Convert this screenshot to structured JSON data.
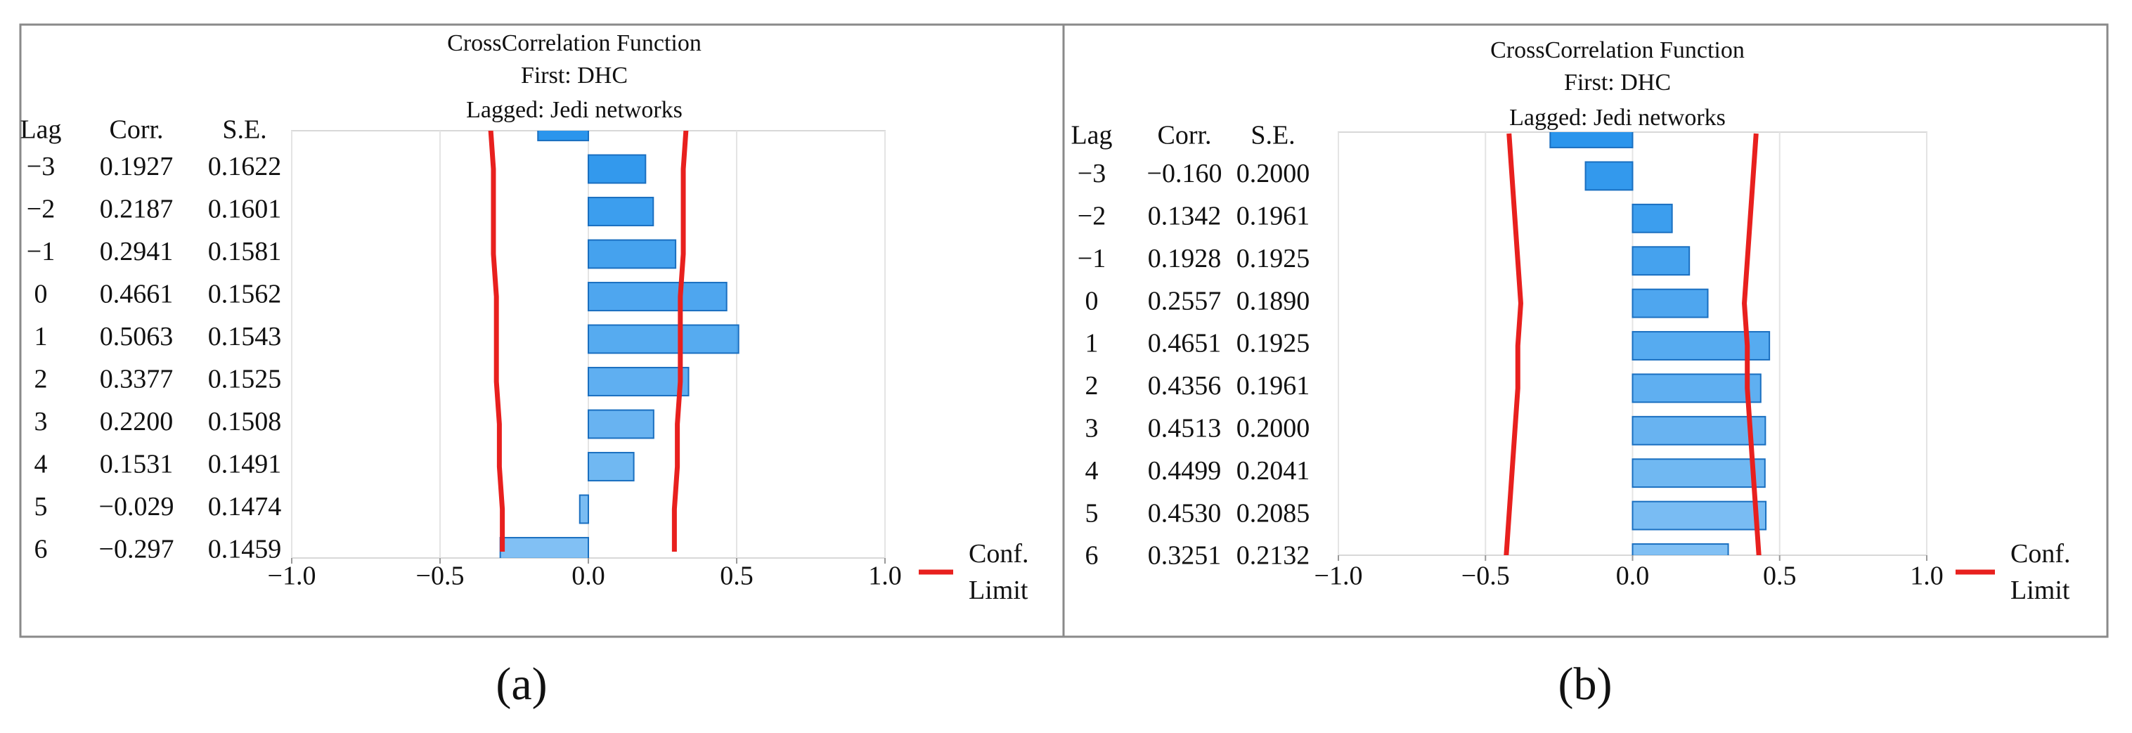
{
  "chart_data": [
    {
      "type": "bar",
      "orientation": "horizontal",
      "panel_label": "(a)",
      "title": [
        "CrossCorrelation Function",
        "First: DHC",
        "Lagged: Jedi networks"
      ],
      "table_header": [
        "Lag",
        "Corr.",
        "S.E."
      ],
      "categories": [
        null,
        "−3",
        "−2",
        "−1",
        "0",
        "1",
        "2",
        "3",
        "4",
        "5",
        "6"
      ],
      "values": [
        -0.17,
        0.1927,
        0.2187,
        0.2941,
        0.4661,
        0.5063,
        0.3377,
        0.22,
        0.1531,
        -0.029,
        -0.297
      ],
      "value_labels": [
        null,
        "0.1927",
        "0.2187",
        "0.2941",
        "0.4661",
        "0.5063",
        "0.3377",
        "0.2200",
        "0.1531",
        "−0.029",
        "−0.297"
      ],
      "se_labels": [
        null,
        "0.1622",
        "0.1601",
        "0.1581",
        "0.1562",
        "0.1543",
        "0.1525",
        "0.1508",
        "0.1491",
        "0.1474",
        "0.1459"
      ],
      "color": "#2b95ec",
      "conf_limit": {
        "name": "Conf. Limit",
        "color": "#e8201e",
        "upper": [
          0.33,
          0.32,
          0.32,
          0.32,
          0.31,
          0.31,
          0.31,
          0.3,
          0.3,
          0.29,
          0.29
        ],
        "lower": [
          -0.33,
          -0.32,
          -0.32,
          -0.32,
          -0.31,
          -0.31,
          -0.31,
          -0.3,
          -0.3,
          -0.29,
          -0.29
        ]
      },
      "xlim": [
        -1.0,
        1.0
      ],
      "xticks": [
        {
          "value": -1.0,
          "label": "−1.0"
        },
        {
          "value": -0.5,
          "label": "−0.5"
        },
        {
          "value": 0,
          "label": "0.0"
        },
        {
          "value": 0.5,
          "label": "0.5"
        },
        {
          "value": 1.0,
          "label": "1.0"
        }
      ],
      "grid": true
    },
    {
      "type": "bar",
      "orientation": "horizontal",
      "panel_label": "(b)",
      "title": [
        "CrossCorrelation Function",
        "First: DHC",
        "Lagged: Jedi networks"
      ],
      "table_header": [
        "Lag",
        "Corr.",
        "S.E."
      ],
      "categories": [
        null,
        "−3",
        "−2",
        "−1",
        "0",
        "1",
        "2",
        "3",
        "4",
        "5",
        "6"
      ],
      "values": [
        -0.28,
        -0.16,
        0.1342,
        0.1928,
        0.2557,
        0.4651,
        0.4356,
        0.4513,
        0.4499,
        0.453,
        0.3251
      ],
      "value_labels": [
        null,
        "−0.160",
        "0.1342",
        "0.1928",
        "0.2557",
        "0.4651",
        "0.4356",
        "0.4513",
        "0.4499",
        "0.4530",
        "0.3251"
      ],
      "se_labels": [
        null,
        "0.2000",
        "0.1961",
        "0.1925",
        "0.1890",
        "0.1925",
        "0.1961",
        "0.2000",
        "0.2041",
        "0.2085",
        "0.2132"
      ],
      "color": "#2b95ec",
      "conf_limit": {
        "name": "Conf. Limit",
        "color": "#e8201e",
        "upper": [
          0.42,
          0.41,
          0.4,
          0.39,
          0.38,
          0.39,
          0.39,
          0.4,
          0.41,
          0.42,
          0.43
        ],
        "lower": [
          -0.42,
          -0.41,
          -0.4,
          -0.39,
          -0.38,
          -0.39,
          -0.39,
          -0.4,
          -0.41,
          -0.42,
          -0.43
        ]
      },
      "xlim": [
        -1.0,
        1.0
      ],
      "xticks": [
        {
          "value": -1.0,
          "label": "−1.0"
        },
        {
          "value": -0.5,
          "label": "−0.5"
        },
        {
          "value": 0,
          "label": "0.0"
        },
        {
          "value": 0.5,
          "label": "0.5"
        },
        {
          "value": 1.0,
          "label": "1.0"
        }
      ],
      "grid": true
    }
  ]
}
